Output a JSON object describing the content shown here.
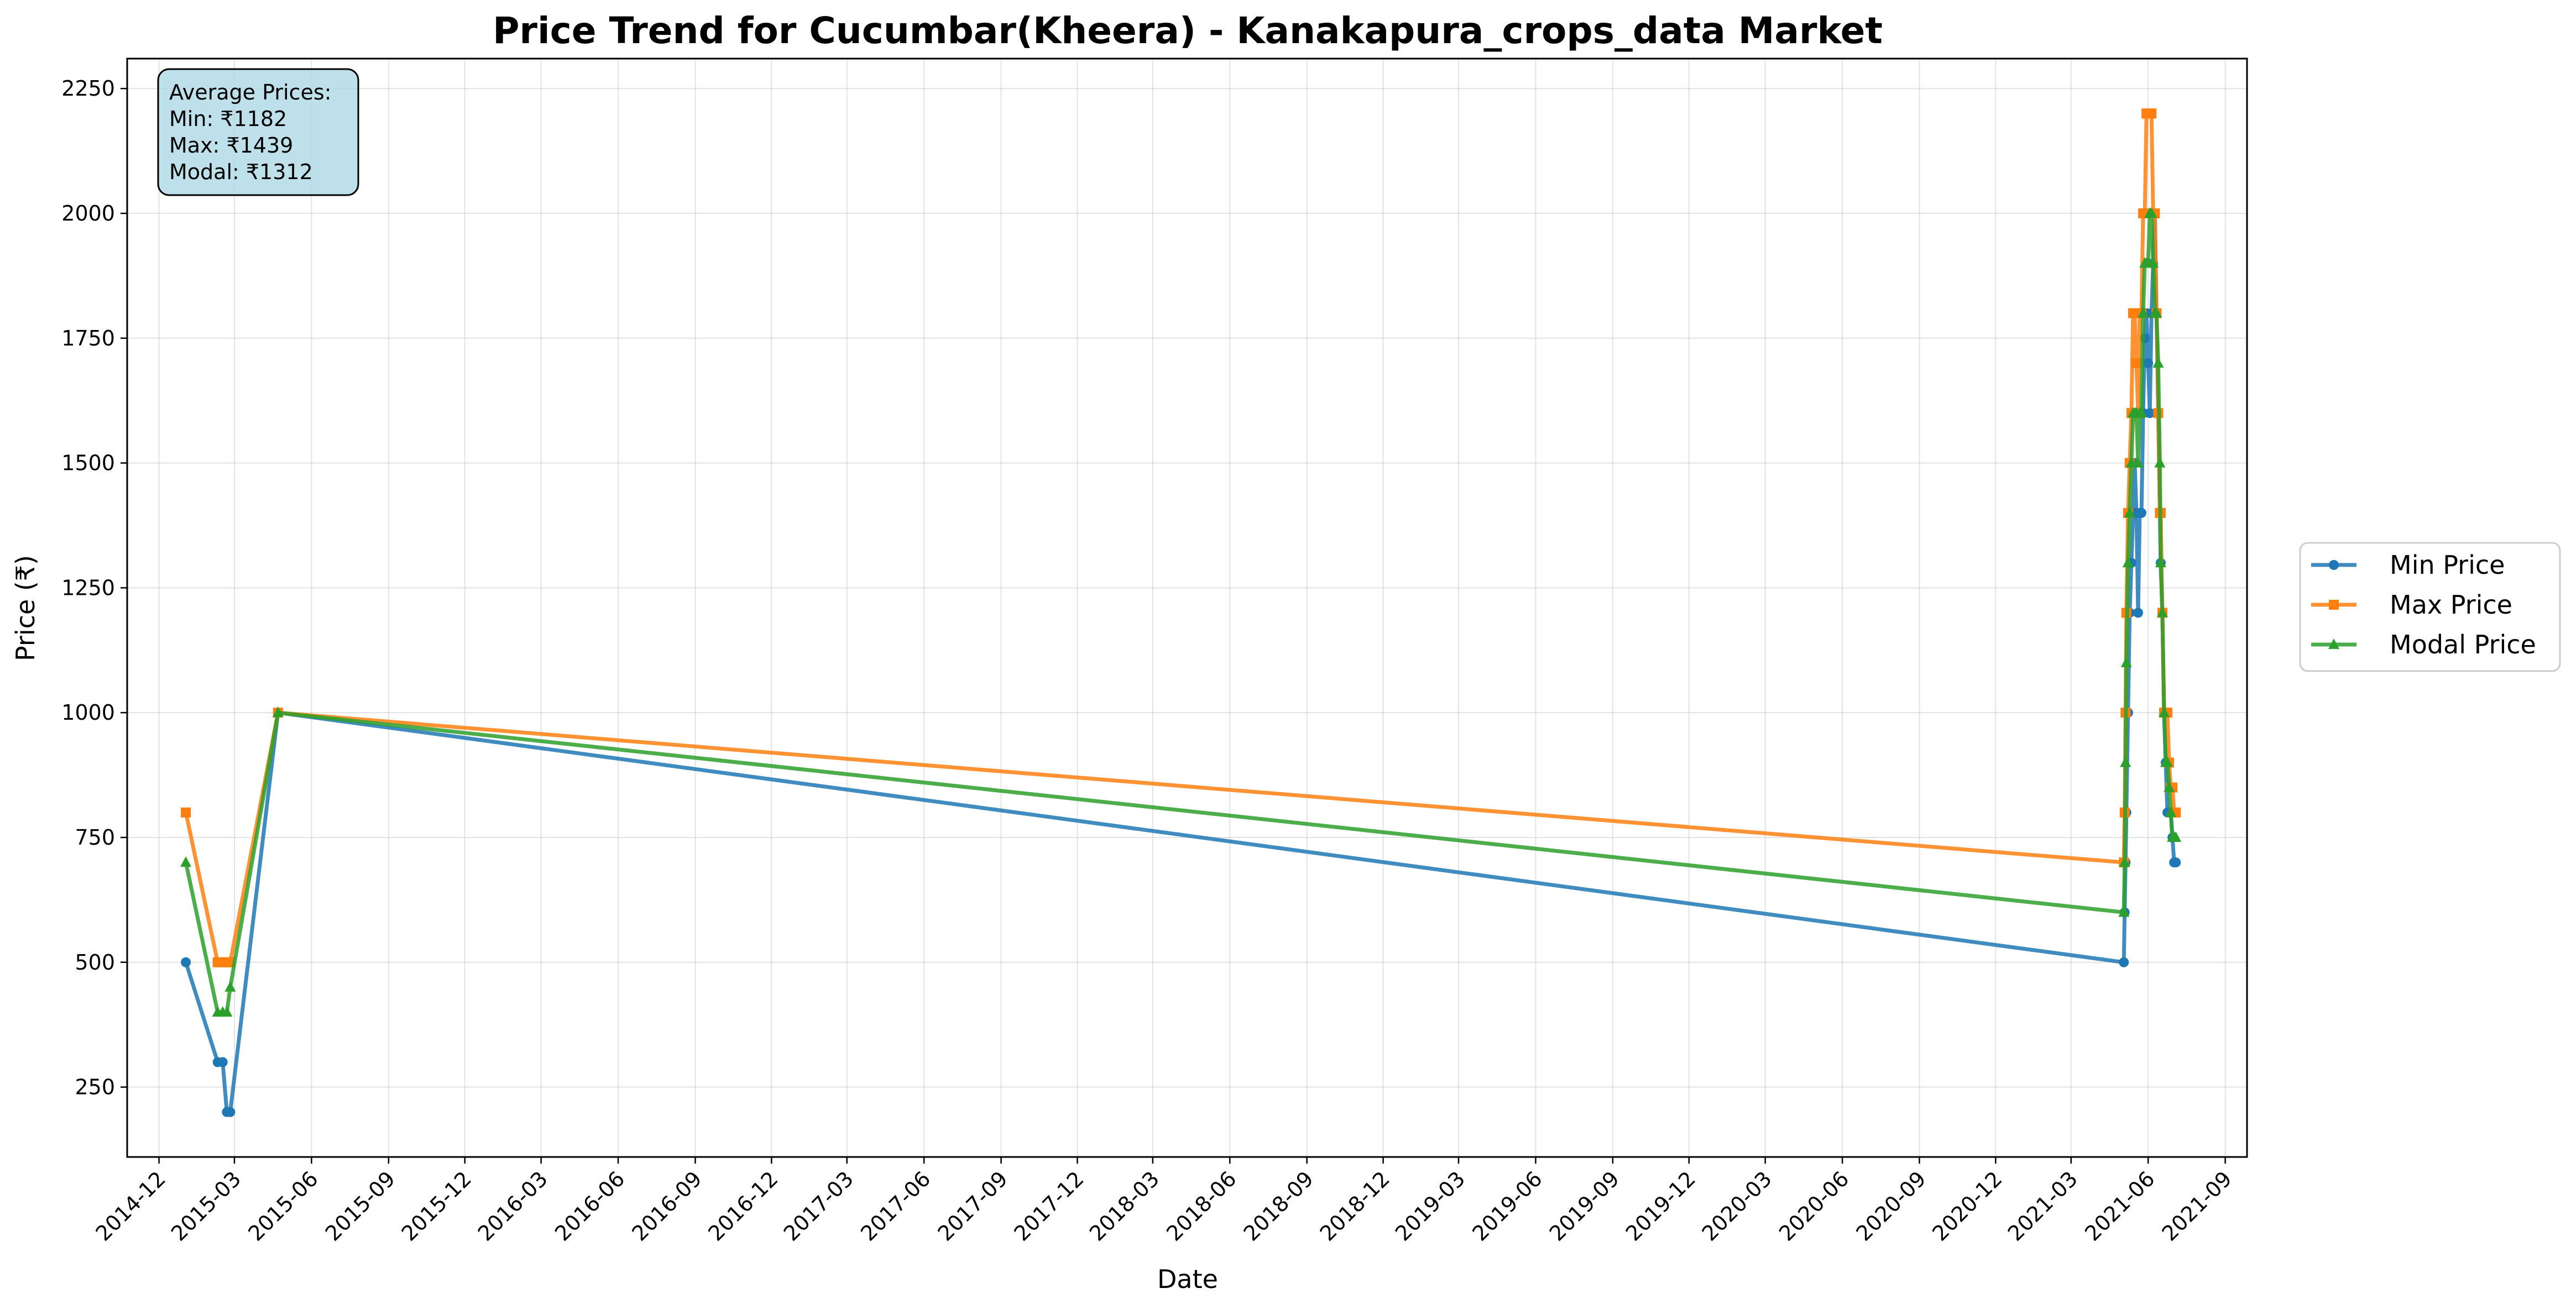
{
  "chart_data": {
    "type": "line",
    "title": "Price Trend for Cucumbar(Kheera) - Kanakapura_crops_data Market",
    "xlabel": "Date",
    "ylabel": "Price (₹)",
    "ylim": [
      110,
      2310
    ],
    "y_ticks": [
      250,
      500,
      750,
      1000,
      1250,
      1500,
      1750,
      2000,
      2250
    ],
    "xlim": [
      "2014-10-24",
      "2021-09-27"
    ],
    "x_ticks": [
      "2014-12",
      "2015-03",
      "2015-06",
      "2015-09",
      "2015-12",
      "2016-03",
      "2016-06",
      "2016-09",
      "2016-12",
      "2017-03",
      "2017-06",
      "2017-09",
      "2017-12",
      "2018-03",
      "2018-06",
      "2018-09",
      "2018-12",
      "2019-03",
      "2019-06",
      "2019-09",
      "2019-12",
      "2020-03",
      "2020-06",
      "2020-09",
      "2020-12",
      "2021-03",
      "2021-06",
      "2021-09"
    ],
    "grid": true,
    "legend_position": "right, outside plot",
    "info_box": {
      "lines": [
        "Average Prices:",
        "Min: ₹1182",
        "Max: ₹1439",
        "Modal: ₹1312"
      ]
    },
    "x": [
      "2015-01-02",
      "2015-02-09",
      "2015-02-15",
      "2015-02-20",
      "2015-02-24",
      "2015-04-22",
      "2021-05-03",
      "2021-05-04",
      "2021-05-05",
      "2021-05-06",
      "2021-05-08",
      "2021-05-10",
      "2021-05-12",
      "2021-05-14",
      "2021-05-16",
      "2021-05-18",
      "2021-05-20",
      "2021-05-22",
      "2021-05-24",
      "2021-05-26",
      "2021-05-28",
      "2021-05-30",
      "2021-06-01",
      "2021-06-03",
      "2021-06-05",
      "2021-06-07",
      "2021-06-09",
      "2021-06-11",
      "2021-06-13",
      "2021-06-15",
      "2021-06-16",
      "2021-06-18",
      "2021-06-20",
      "2021-06-22",
      "2021-06-24",
      "2021-06-26",
      "2021-06-28",
      "2021-06-30",
      "2021-07-02",
      "2021-07-04"
    ],
    "series": [
      {
        "name": "Min Price",
        "color": "#1f77b4",
        "marker": "circle",
        "values": [
          500,
          300,
          300,
          200,
          200,
          1000,
          500,
          600,
          700,
          800,
          1000,
          1200,
          1300,
          1400,
          1500,
          1400,
          1200,
          1400,
          1400,
          1600,
          1750,
          1800,
          1700,
          1600,
          1800,
          1900,
          2000,
          1800,
          1600,
          1400,
          1300,
          1200,
          1000,
          900,
          800,
          800,
          800,
          750,
          700,
          700
        ]
      },
      {
        "name": "Max Price",
        "color": "#ff7f0e",
        "marker": "square",
        "values": [
          800,
          500,
          500,
          500,
          500,
          1000,
          700,
          800,
          1000,
          1200,
          1400,
          1500,
          1600,
          1800,
          1800,
          1700,
          1600,
          1800,
          1800,
          2000,
          2000,
          2200,
          2200,
          2200,
          2200,
          2000,
          2000,
          1800,
          1600,
          1400,
          1400,
          1200,
          1000,
          1000,
          1000,
          900,
          850,
          850,
          800,
          800
        ]
      },
      {
        "name": "Modal Price",
        "color": "#2ca02c",
        "marker": "triangle",
        "values": [
          700,
          400,
          400,
          400,
          450,
          1000,
          600,
          700,
          900,
          1100,
          1300,
          1400,
          1500,
          1600,
          1600,
          1600,
          1500,
          1600,
          1600,
          1800,
          1900,
          1900,
          1900,
          2000,
          2000,
          1900,
          1800,
          1800,
          1700,
          1500,
          1300,
          1200,
          1000,
          900,
          900,
          850,
          800,
          750,
          750,
          750
        ]
      }
    ]
  }
}
